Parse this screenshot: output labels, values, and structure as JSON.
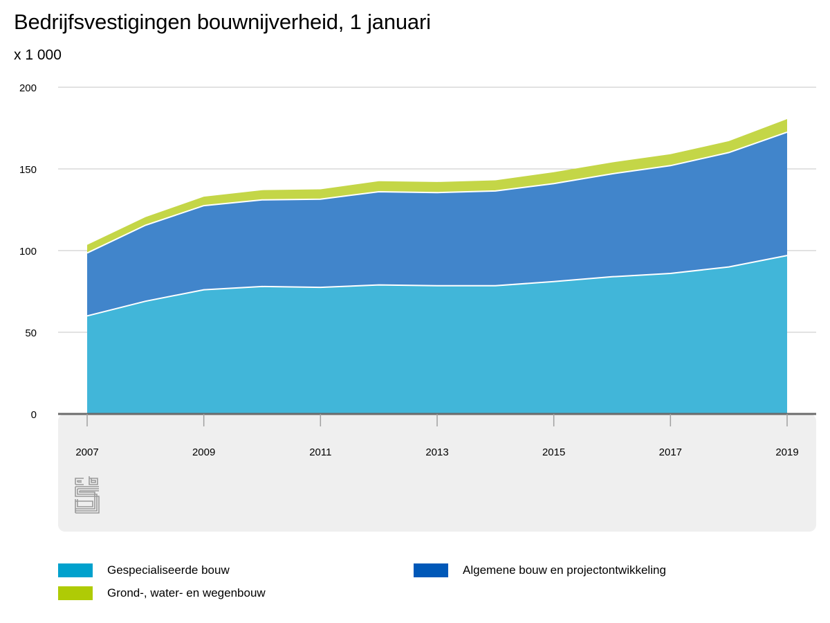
{
  "title": "Bedrijfsvestigingen bouwnijverheid, 1 januari",
  "subtitle": "x 1 000",
  "chart_data": {
    "type": "area",
    "stacked": true,
    "title": "Bedrijfsvestigingen bouwnijverheid, 1 januari",
    "unit": "x 1 000",
    "ylim": [
      0,
      200
    ],
    "yticks": [
      "0",
      "50",
      "100",
      "150",
      "200"
    ],
    "xlim": [
      2007,
      2019
    ],
    "x": [
      2007,
      2008,
      2009,
      2010,
      2011,
      2012,
      2013,
      2014,
      2015,
      2016,
      2017,
      2018,
      2019
    ],
    "xticks": [
      "2007",
      "2009",
      "2011",
      "2013",
      "2015",
      "2017",
      "2019"
    ],
    "grid": true,
    "legend_position": "bottom",
    "series": [
      {
        "name": "Gespecialiseerde bouw",
        "color": "#41b6d9",
        "legend_color": "#00a1cd",
        "values": [
          60,
          69,
          76,
          78,
          77.5,
          79,
          78.5,
          78.5,
          81,
          84,
          86,
          90,
          97
        ]
      },
      {
        "name": "Algemene bouw en projectontwikkeling",
        "color": "#4185cb",
        "legend_color": "#0058b8",
        "values": [
          38.5,
          46.5,
          51.5,
          53,
          54,
          57,
          57,
          58,
          60,
          63,
          66,
          70,
          75.5
        ]
      },
      {
        "name": "Grond-, water- en wegenbouw",
        "color": "#c4d647",
        "legend_color": "#afcb05",
        "values": [
          5,
          5,
          5.5,
          6,
          6,
          6.5,
          6.5,
          6.5,
          7,
          7,
          7,
          7,
          8
        ]
      }
    ]
  },
  "legend_order": [
    0,
    1,
    2
  ],
  "logo": "cbs-logo-icon"
}
